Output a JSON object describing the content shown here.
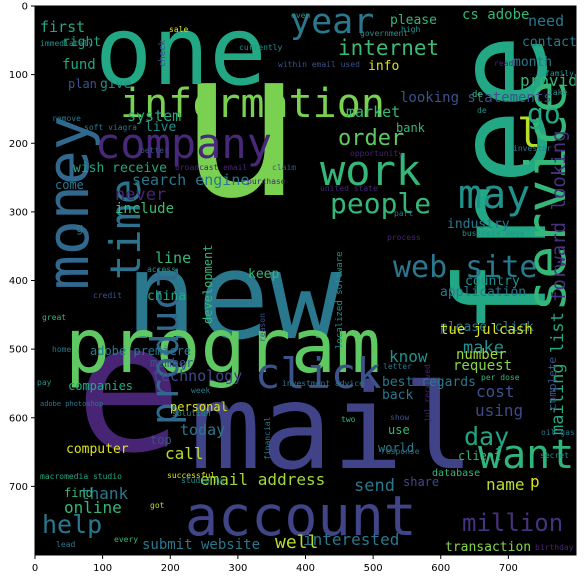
{
  "figure": {
    "x_ticks": [
      "0",
      "100",
      "200",
      "300",
      "400",
      "500",
      "600",
      "700"
    ],
    "y_ticks": [
      "0",
      "100",
      "200",
      "300",
      "400",
      "500",
      "600",
      "700"
    ],
    "background": "#000000",
    "frame_color": "#000000"
  },
  "words": [
    {
      "t": "u",
      "c": "#7AD151"
    },
    {
      "t": "new",
      "c": "#2A788E"
    },
    {
      "t": "free",
      "c": "#22A884"
    },
    {
      "t": "e",
      "c": "#482475"
    },
    {
      "t": "mail",
      "c": "#404387"
    },
    {
      "t": "one",
      "c": "#22A884"
    },
    {
      "t": "program",
      "c": "#5EC962"
    },
    {
      "t": "account",
      "c": "#414487"
    },
    {
      "t": "information",
      "c": "#7AD151"
    },
    {
      "t": "money",
      "c": "#31688E"
    },
    {
      "t": "company",
      "c": "#482878"
    },
    {
      "t": "service",
      "c": "#35B779"
    },
    {
      "t": "click",
      "c": "#3B528B"
    },
    {
      "t": "year",
      "c": "#2A788E"
    },
    {
      "t": "work",
      "c": "#35B779"
    },
    {
      "t": "may",
      "c": "#21918C"
    },
    {
      "t": "want",
      "c": "#2FB47C"
    },
    {
      "t": "time",
      "c": "#2C728E"
    },
    {
      "t": "product",
      "c": "#31688E"
    },
    {
      "t": "web site",
      "c": "#2A788E"
    },
    {
      "t": "people",
      "c": "#35B779"
    },
    {
      "t": "order",
      "c": "#5EC962"
    },
    {
      "t": "internet",
      "c": "#3BBB75"
    },
    {
      "t": "day",
      "c": "#21A585"
    },
    {
      "t": "million",
      "c": "#46337F"
    },
    {
      "t": "help",
      "c": "#2A788E"
    },
    {
      "t": "l",
      "c": "#B8DE29"
    },
    {
      "t": "go",
      "c": "#22A884"
    },
    {
      "t": "forward looking",
      "c": "#46337F"
    },
    {
      "t": "mailing list",
      "c": "#22A884"
    },
    {
      "t": "email address",
      "c": "#9FDA3A"
    },
    {
      "t": "submit website",
      "c": "#2A788E"
    },
    {
      "t": "search engine",
      "c": "#2A788E"
    },
    {
      "t": "system",
      "c": "#22A884"
    },
    {
      "t": "market",
      "c": "#35B779"
    },
    {
      "t": "technology",
      "c": "#3E4A89"
    },
    {
      "t": "cost",
      "c": "#3B528B"
    },
    {
      "t": "using",
      "c": "#3E4A89"
    },
    {
      "t": "today",
      "c": "#2A788E"
    },
    {
      "t": "call",
      "c": "#B8DE29"
    },
    {
      "t": "need",
      "c": "#2A788E"
    },
    {
      "t": "first",
      "c": "#22A884"
    },
    {
      "t": "provide",
      "c": "#35B779"
    },
    {
      "t": "make",
      "c": "#21918C"
    },
    {
      "t": "know",
      "c": "#21918C"
    },
    {
      "t": "name",
      "c": "#B8DE29"
    },
    {
      "t": "send",
      "c": "#2A788E"
    },
    {
      "t": "online",
      "c": "#35B779"
    },
    {
      "t": "thank",
      "c": "#2A788E"
    },
    {
      "t": "well",
      "c": "#B8DE29"
    },
    {
      "t": "interested",
      "c": "#2A788E"
    },
    {
      "t": "transaction",
      "c": "#86D549"
    },
    {
      "t": "include",
      "c": "#3BBB75"
    },
    {
      "t": "never",
      "c": "#482475"
    },
    {
      "t": "line",
      "c": "#35B779"
    },
    {
      "t": "keep",
      "c": "#35B779"
    },
    {
      "t": "china",
      "c": "#22A884"
    },
    {
      "t": "best regards",
      "c": "#2A788E"
    },
    {
      "t": "back",
      "c": "#2A788E"
    },
    {
      "t": "request",
      "c": "#86D549"
    },
    {
      "t": "number",
      "c": "#9FDA3A"
    },
    {
      "t": "personal",
      "c": "#DCE319"
    },
    {
      "t": "computer",
      "c": "#DCE319"
    },
    {
      "t": "industry",
      "c": "#2A788E"
    },
    {
      "t": "country",
      "c": "#21918C"
    },
    {
      "t": "please click",
      "c": "#2A788E"
    },
    {
      "t": "application",
      "c": "#2A788E"
    },
    {
      "t": "tue julcash",
      "c": "#DCE319"
    },
    {
      "t": "looking statements",
      "c": "#3B528B"
    },
    {
      "t": "bank",
      "c": "#35B779"
    },
    {
      "t": "cs adobe",
      "c": "#35B779"
    },
    {
      "t": "please",
      "c": "#35B779"
    },
    {
      "t": "contact",
      "c": "#2A788E"
    },
    {
      "t": "month",
      "c": "#2A788E"
    },
    {
      "t": "fund",
      "c": "#22A884"
    },
    {
      "t": "right",
      "c": "#22A884"
    },
    {
      "t": "give",
      "c": "#21918C"
    },
    {
      "t": "plan",
      "c": "#3B528B"
    },
    {
      "t": "info",
      "c": "#DCE319"
    },
    {
      "t": "live",
      "c": "#21918C"
    },
    {
      "t": "wish receive",
      "c": "#22A884"
    },
    {
      "t": "come",
      "c": "#2A788E"
    },
    {
      "t": "development",
      "c": "#35B779"
    },
    {
      "t": "companies",
      "c": "#22A884"
    },
    {
      "t": "adobe premiere",
      "c": "#2A788E"
    },
    {
      "t": "member",
      "c": "#3B528B"
    },
    {
      "t": "world",
      "c": "#2A788E"
    },
    {
      "t": "use",
      "c": "#35B779"
    },
    {
      "t": "client",
      "c": "#35B779"
    },
    {
      "t": "share",
      "c": "#3E4A89"
    },
    {
      "t": "top",
      "c": "#3B528B"
    },
    {
      "t": "find",
      "c": "#35B779"
    },
    {
      "t": "complete",
      "c": "#3B528B"
    },
    {
      "t": "database",
      "c": "#35B779"
    },
    {
      "t": "investment advice",
      "c": "#2A788E"
    },
    {
      "t": "localized software",
      "c": "#21918C"
    },
    {
      "t": "macromedia studio",
      "c": "#22A884"
    },
    {
      "t": "adobe photoshop",
      "c": "#2A788E"
    },
    {
      "t": "soft viagra",
      "c": "#2A788E"
    },
    {
      "t": "broadcast email",
      "c": "#482475"
    },
    {
      "t": "immediately",
      "c": "#21918C"
    },
    {
      "t": "government",
      "c": "#21918C"
    },
    {
      "t": "within email used",
      "c": "#3B528B"
    },
    {
      "t": "currently",
      "c": "#21918C"
    },
    {
      "t": "business days",
      "c": "#21918C"
    },
    {
      "t": "opportunity",
      "c": "#482475"
    },
    {
      "t": "purchase",
      "c": "#482475"
    },
    {
      "t": "united state",
      "c": "#482475"
    },
    {
      "t": "even",
      "c": "#21918C"
    },
    {
      "t": "sale",
      "c": "#DCE319"
    },
    {
      "t": "high",
      "c": "#21918C"
    },
    {
      "t": "check",
      "c": "#3B528B"
    },
    {
      "t": "read",
      "c": "#482475"
    },
    {
      "t": "family",
      "c": "#21918C"
    },
    {
      "t": "take",
      "c": "#21918C"
    },
    {
      "t": "remove",
      "c": "#2A788E"
    },
    {
      "t": "de",
      "c": "#21918C"
    },
    {
      "t": "investor",
      "c": "#2A788E"
    },
    {
      "t": "better",
      "c": "#3B528B"
    },
    {
      "t": "claim",
      "c": "#3B528B"
    },
    {
      "t": "part",
      "c": "#2A788E"
    },
    {
      "t": "process",
      "c": "#482475"
    },
    {
      "t": "access",
      "c": "#21918C"
    },
    {
      "t": "credit",
      "c": "#3B528B"
    },
    {
      "t": "great",
      "c": "#35B779"
    },
    {
      "t": "reason",
      "c": "#3B528B"
    },
    {
      "t": "home",
      "c": "#2A788E"
    },
    {
      "t": "pay",
      "c": "#21918C"
    },
    {
      "t": "letter",
      "c": "#2A788E"
    },
    {
      "t": "per dose",
      "c": "#35B779"
    },
    {
      "t": "solution",
      "c": "#21918C"
    },
    {
      "t": "week",
      "c": "#2A788E"
    },
    {
      "t": "two",
      "c": "#35B779"
    },
    {
      "t": "show",
      "c": "#3B528B"
    },
    {
      "t": "financial",
      "c": "#2A788E"
    },
    {
      "t": "jul received",
      "c": "#482475"
    },
    {
      "t": "response",
      "c": "#2A788E"
    },
    {
      "t": "secret",
      "c": "#21918C"
    },
    {
      "t": "oil gas",
      "c": "#2A788E"
    },
    {
      "t": "successful",
      "c": "#DCE319"
    },
    {
      "t": "studio mx",
      "c": "#21918C"
    },
    {
      "t": "got",
      "c": "#B8DE29"
    },
    {
      "t": "lead",
      "c": "#2A788E"
    },
    {
      "t": "every",
      "c": "#35B779"
    },
    {
      "t": "birthday",
      "c": "#482475"
    },
    {
      "t": "p",
      "c": "#DCE319"
    },
    {
      "t": "g",
      "c": "#2A788E"
    },
    {
      "t": "v",
      "c": "#3B528B"
    },
    {
      "t": "de",
      "c": "#35B779"
    }
  ]
}
